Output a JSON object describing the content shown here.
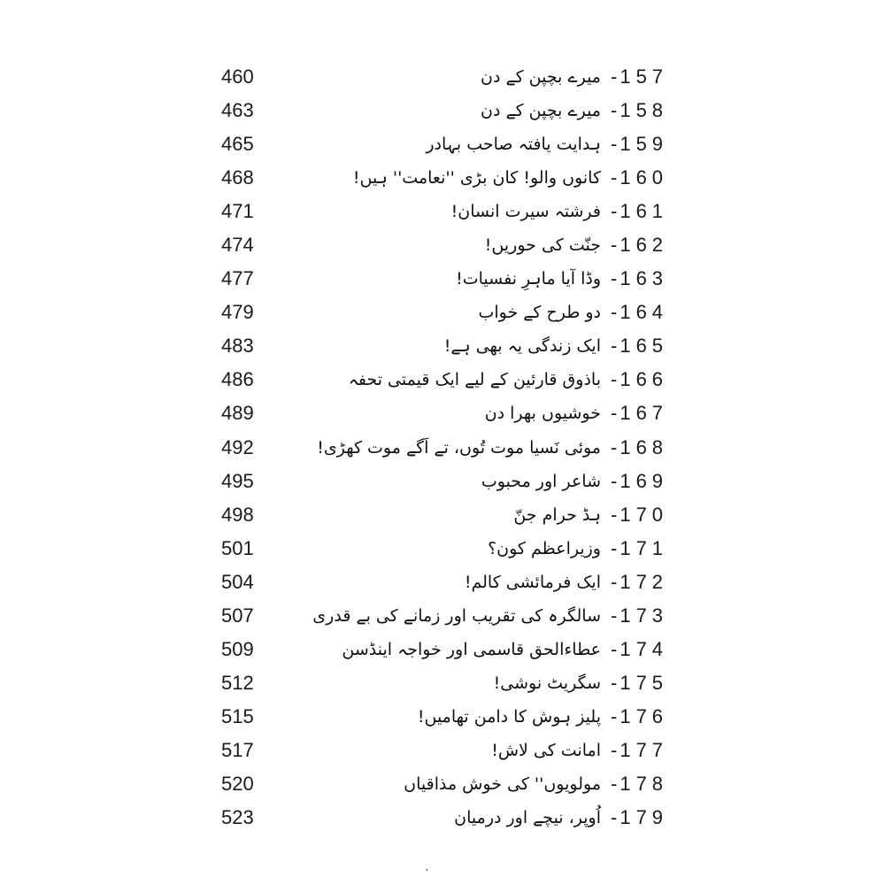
{
  "toc": {
    "dash": "-",
    "entries": [
      {
        "num": "157",
        "title": "میرے بچپن کے دن",
        "page": "460"
      },
      {
        "num": "158",
        "title": "میرے بچپن کے دن",
        "page": "463"
      },
      {
        "num": "159",
        "title": "ہدایت یافتہ صاحب بہادر",
        "page": "465"
      },
      {
        "num": "160",
        "title": "کانوں والو! کان بڑی ''نعامت'' ہیں!",
        "page": "468"
      },
      {
        "num": "161",
        "title": "فرشتہ سیرت انسان!",
        "page": "471"
      },
      {
        "num": "162",
        "title": "جنّت کی حوریں!",
        "page": "474"
      },
      {
        "num": "163",
        "title": "وڈا آیا ماہرِ نفسیات!",
        "page": "477"
      },
      {
        "num": "164",
        "title": "دو طرح کے خواب",
        "page": "479"
      },
      {
        "num": "165",
        "title": "ایک زندگی یہ بھی ہے!",
        "page": "483"
      },
      {
        "num": "166",
        "title": "باذوق قارئین کے لیے ایک قیمتی تحفہ",
        "page": "486"
      },
      {
        "num": "167",
        "title": "خوشیوں بھرا دن",
        "page": "489"
      },
      {
        "num": "168",
        "title": "موئی نَسیا موت تُوں، تے اَگے موت کھڑی!",
        "page": "492"
      },
      {
        "num": "169",
        "title": "شاعر اور محبوب",
        "page": "495"
      },
      {
        "num": "170",
        "title": "ہڈ حرام جنّ",
        "page": "498"
      },
      {
        "num": "171",
        "title": "وزیراعظم کون؟",
        "page": "501"
      },
      {
        "num": "172",
        "title": "ایک فرمائشی کالم!",
        "page": "504"
      },
      {
        "num": "173",
        "title": "سالگرہ کی تقریب اور زمانے کی بے قدری",
        "page": "507"
      },
      {
        "num": "174",
        "title": "عطاءالحق قاسمی اور خواجہ اینڈسن",
        "page": "509"
      },
      {
        "num": "175",
        "title": "سگریٹ نوشی!",
        "page": "512"
      },
      {
        "num": "176",
        "title": "پلیز ہوش کا دامن تھامیں!",
        "page": "515"
      },
      {
        "num": "177",
        "title": "امانت کی لاش!",
        "page": "517"
      },
      {
        "num": "178",
        "title": "مولویوں'' کی خوش مذاقیاں",
        "page": "520"
      },
      {
        "num": "179",
        "title": "اُوپر، نیچے اور درمیان",
        "page": "523"
      }
    ]
  },
  "footer": {
    "speck": "·"
  },
  "colors": {
    "background": "#ffffff",
    "text": "#111111"
  }
}
